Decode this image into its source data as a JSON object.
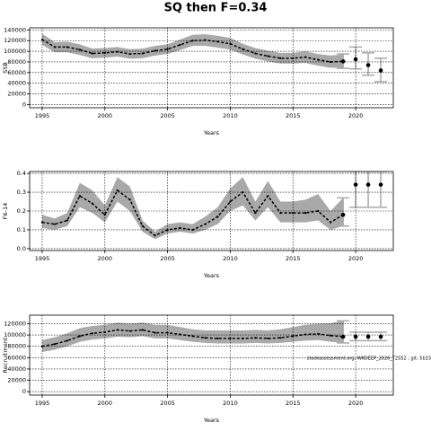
{
  "title": "SQ then F=0.34",
  "chart_data": [
    {
      "type": "line",
      "ylabel": "SSB",
      "xlabel": "Years",
      "x": [
        1995,
        1996,
        1997,
        1998,
        1999,
        2000,
        2001,
        2002,
        2003,
        2004,
        2005,
        2006,
        2007,
        2008,
        2009,
        2010,
        2011,
        2012,
        2013,
        2014,
        2015,
        2016,
        2017,
        2018,
        2019
      ],
      "values": [
        122000,
        108000,
        108000,
        103000,
        96000,
        97000,
        99000,
        95000,
        96000,
        101000,
        104000,
        112000,
        120000,
        121000,
        118000,
        114000,
        104000,
        96000,
        91000,
        87000,
        87000,
        89000,
        84000,
        80000,
        81000
      ],
      "lower": [
        112000,
        98000,
        98000,
        93000,
        87000,
        88000,
        90000,
        86000,
        87000,
        92000,
        95000,
        102000,
        110000,
        110000,
        107000,
        103000,
        94000,
        86000,
        81000,
        77000,
        77000,
        78000,
        73000,
        69000,
        69000
      ],
      "upper": [
        133000,
        117000,
        118000,
        113000,
        105000,
        106000,
        108000,
        104000,
        105000,
        110000,
        113000,
        122000,
        131000,
        132000,
        129000,
        125000,
        114000,
        106000,
        101000,
        97000,
        97000,
        100000,
        95000,
        92000,
        94000
      ],
      "forecast_x": [
        2019,
        2020,
        2021,
        2022
      ],
      "forecast_values": [
        81000,
        85000,
        74000,
        64000
      ],
      "forecast_lower": [
        68000,
        67000,
        55000,
        43000
      ],
      "forecast_upper": [
        95000,
        108000,
        97000,
        87000
      ],
      "color": "#000000",
      "band_color": "#a9a9a9",
      "xlim": [
        1994,
        2023
      ],
      "ylim": [
        -6000,
        144000
      ],
      "xticks": [
        1995,
        2000,
        2005,
        2010,
        2015,
        2020
      ],
      "yticks": [
        0,
        20000,
        40000,
        60000,
        80000,
        100000,
        120000,
        140000
      ],
      "grid": true
    },
    {
      "type": "line",
      "ylabel": "F6-14",
      "xlabel": "Years",
      "x": [
        1995,
        1996,
        1997,
        1998,
        1999,
        2000,
        2001,
        2002,
        2003,
        2004,
        2005,
        2006,
        2007,
        2008,
        2009,
        2010,
        2011,
        2012,
        2013,
        2014,
        2015,
        2016,
        2017,
        2018,
        2019
      ],
      "values": [
        0.14,
        0.13,
        0.15,
        0.28,
        0.24,
        0.18,
        0.31,
        0.26,
        0.12,
        0.07,
        0.1,
        0.11,
        0.1,
        0.13,
        0.17,
        0.25,
        0.3,
        0.19,
        0.28,
        0.19,
        0.19,
        0.19,
        0.2,
        0.14,
        0.18
      ],
      "lower": [
        0.11,
        0.1,
        0.12,
        0.22,
        0.19,
        0.14,
        0.25,
        0.2,
        0.09,
        0.05,
        0.08,
        0.09,
        0.08,
        0.1,
        0.13,
        0.2,
        0.23,
        0.15,
        0.22,
        0.14,
        0.14,
        0.14,
        0.15,
        0.1,
        0.12
      ],
      "upper": [
        0.18,
        0.16,
        0.19,
        0.35,
        0.31,
        0.23,
        0.38,
        0.33,
        0.15,
        0.09,
        0.13,
        0.14,
        0.13,
        0.17,
        0.22,
        0.32,
        0.38,
        0.25,
        0.36,
        0.25,
        0.25,
        0.26,
        0.29,
        0.2,
        0.27
      ],
      "forecast_x": [
        2019,
        2020,
        2021,
        2022
      ],
      "forecast_values": [
        0.18,
        0.34,
        0.34,
        0.34
      ],
      "forecast_lower": [
        0.12,
        0.22,
        0.22,
        0.22
      ],
      "forecast_upper": [
        0.27,
        0.41,
        0.41,
        0.41
      ],
      "color": "#000000",
      "band_color": "#a9a9a9",
      "xlim": [
        1994,
        2023
      ],
      "ylim": [
        -0.01,
        0.41
      ],
      "xticks": [
        1995,
        2000,
        2005,
        2010,
        2015,
        2020
      ],
      "yticks": [
        {
          "value": 0,
          "label": "0.0"
        },
        0.1,
        0.2,
        0.3,
        0.4
      ],
      "grid": true
    },
    {
      "type": "line",
      "ylabel": "Recruitment",
      "xlabel": "Years",
      "annotation": "stockassessment.org, WKDEEP_2020_T2552 ; git: 5b33",
      "x": [
        1995,
        1996,
        1997,
        1998,
        1999,
        2000,
        2001,
        2002,
        2003,
        2004,
        2005,
        2006,
        2007,
        2008,
        2009,
        2010,
        2011,
        2012,
        2013,
        2014,
        2015,
        2016,
        2017,
        2018,
        2019
      ],
      "values": [
        80000,
        84000,
        90000,
        98000,
        103000,
        105000,
        109000,
        107000,
        109000,
        104000,
        104000,
        101000,
        98000,
        95000,
        94000,
        94000,
        94000,
        95000,
        94000,
        95000,
        98000,
        101000,
        102000,
        99000,
        97000
      ],
      "lower": [
        70000,
        74000,
        80000,
        88000,
        92000,
        94000,
        97000,
        96000,
        98000,
        94000,
        94000,
        91000,
        88000,
        86000,
        85000,
        85000,
        85000,
        86000,
        85000,
        86000,
        88000,
        90000,
        91000,
        88000,
        86000
      ],
      "upper": [
        91000,
        96000,
        103000,
        112000,
        116000,
        118000,
        122000,
        120000,
        122000,
        118000,
        118000,
        114000,
        110000,
        108000,
        108000,
        108000,
        108000,
        109000,
        108000,
        110000,
        114000,
        118000,
        120000,
        121000,
        125000
      ],
      "forecast_x": [
        2019,
        2020,
        2021,
        2022
      ],
      "forecast_values": [
        97000,
        97000,
        97000,
        97000
      ],
      "forecast_lower": [
        86000,
        90000,
        90000,
        90000
      ],
      "forecast_upper": [
        125000,
        105000,
        105000,
        105000
      ],
      "color": "#000000",
      "band_color": "#a9a9a9",
      "xlim": [
        1994,
        2023
      ],
      "ylim": [
        -6000,
        135000
      ],
      "xticks": [
        1995,
        2000,
        2005,
        2010,
        2015,
        2020
      ],
      "yticks": [
        0,
        20000,
        40000,
        60000,
        80000,
        100000,
        120000
      ],
      "grid": true
    }
  ]
}
